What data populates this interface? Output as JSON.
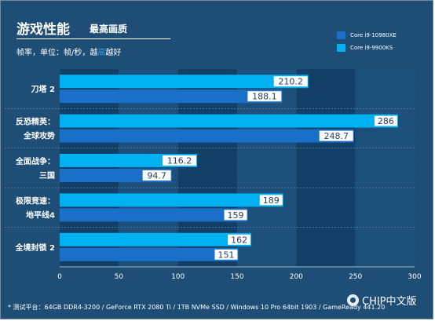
{
  "header": {
    "title": "游戏性能",
    "subtitle": "最高画质",
    "units_prefix": "帧率，单位：帧/秒，越",
    "units_accent": "高",
    "units_suffix": "越好"
  },
  "footer": {
    "note": "* 测试平台：64GB DDR4-3200 / GeForce RTX 2080 Ti / 1TB NVMe SSD / Windows 10 Pro 64bit 1903 / GameReady 441.20",
    "watermark": "CHIP中文版"
  },
  "colors": {
    "background": "#1e4d75",
    "plot_band_dark": "#133f66",
    "plot_band_light": "#1c4f79",
    "series_1": "#1a6fc9",
    "series_2": "#00b0f0",
    "label_box": "#ffffff"
  },
  "chart_data": {
    "type": "bar",
    "orientation": "horizontal",
    "categories": [
      [
        "刀塔 2"
      ],
      [
        "反恐精英：",
        "全球攻势"
      ],
      [
        "全面战争：",
        "三国"
      ],
      [
        "极限竞速：",
        "地平线4"
      ],
      [
        "全境封锁 2"
      ]
    ],
    "series": [
      {
        "name": "Core i9-9900KS",
        "values": [
          210.2,
          286,
          116.2,
          189,
          162
        ]
      },
      {
        "name": "Core i9-10980XE",
        "values": [
          188.1,
          248.7,
          94.7,
          159,
          151
        ]
      }
    ],
    "legend": [
      "Core i9-10980XE",
      "Core i9-9900KS"
    ],
    "legend_placement": "top-right",
    "xlim": [
      0,
      300
    ],
    "x_ticks": [
      0,
      50,
      100,
      150,
      200,
      250,
      300
    ],
    "grid": true
  }
}
